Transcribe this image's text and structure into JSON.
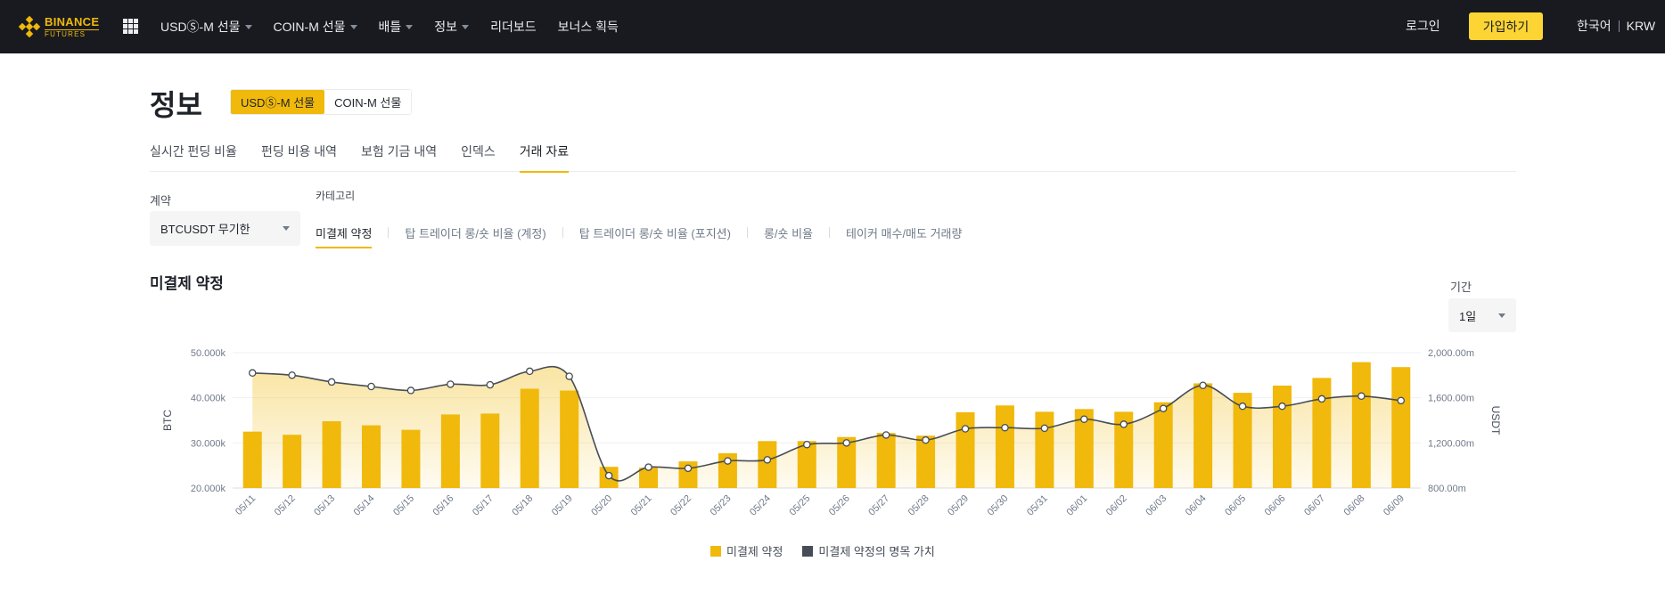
{
  "nav": {
    "logo_line1": "BINANCE",
    "logo_line2": "FUTURES",
    "items": [
      {
        "label": "USDⓈ-M 선물",
        "dropdown": true
      },
      {
        "label": "COIN-M 선물",
        "dropdown": true
      },
      {
        "label": "배틀",
        "dropdown": true
      },
      {
        "label": "정보",
        "dropdown": true
      },
      {
        "label": "리더보드",
        "dropdown": false
      },
      {
        "label": "보너스 획득",
        "dropdown": false
      }
    ],
    "login": "로그인",
    "signup": "가입하기",
    "language": "한국어",
    "currency": "KRW"
  },
  "header": {
    "title": "정보",
    "segments": [
      {
        "label": "USDⓈ-M 선물",
        "active": true
      },
      {
        "label": "COIN-M 선물",
        "active": false
      }
    ]
  },
  "tabs": [
    {
      "label": "실시간 펀딩 비율",
      "active": false
    },
    {
      "label": "펀딩 비용 내역",
      "active": false
    },
    {
      "label": "보험 기금 내역",
      "active": false
    },
    {
      "label": "인덱스",
      "active": false
    },
    {
      "label": "거래 자료",
      "active": true
    }
  ],
  "filters": {
    "contract_label": "계약",
    "contract_value": "BTCUSDT 무기한",
    "category_label": "카테고리",
    "categories": [
      {
        "label": "미결제 약정",
        "active": true
      },
      {
        "label": "탑 트레이더 롱/숏 비율 (계정)",
        "active": false
      },
      {
        "label": "탑 트레이더 롱/숏 비율 (포지션)",
        "active": false
      },
      {
        "label": "롱/숏 비율",
        "active": false
      },
      {
        "label": "테이커 매수/매도 거래량",
        "active": false
      }
    ],
    "period_label": "기간",
    "period_value": "1일"
  },
  "section_title": "미결제 약정",
  "colors": {
    "accent": "#f0b90b",
    "line": "#474d57",
    "nav_bg": "#181a20"
  },
  "chart_data": {
    "type": "bar",
    "categories": [
      "05/11",
      "05/12",
      "05/13",
      "05/14",
      "05/15",
      "05/16",
      "05/17",
      "05/18",
      "05/19",
      "05/20",
      "05/21",
      "05/22",
      "05/23",
      "05/24",
      "05/25",
      "05/26",
      "05/27",
      "05/28",
      "05/29",
      "05/30",
      "05/31",
      "06/01",
      "06/02",
      "06/03",
      "06/04",
      "06/05",
      "06/06",
      "06/07",
      "06/08",
      "06/09"
    ],
    "series": [
      {
        "name": "미결제 약정",
        "type": "bar",
        "axis": "left",
        "values": [
          32.5,
          31.8,
          34.8,
          33.9,
          32.9,
          36.3,
          36.5,
          42.0,
          41.6,
          24.7,
          24.5,
          25.9,
          27.7,
          30.4,
          30.4,
          31.3,
          32.2,
          31.6,
          36.8,
          38.3,
          36.9,
          37.5,
          36.9,
          39.0,
          43.2,
          41.1,
          42.7,
          44.4,
          47.9,
          46.8
        ]
      },
      {
        "name": "미결제 약정의 명목 가치",
        "type": "line",
        "axis": "right",
        "values": [
          1820,
          1800,
          1740,
          1700,
          1665,
          1720,
          1715,
          1835,
          1790,
          910,
          985,
          975,
          1040,
          1050,
          1185,
          1200,
          1270,
          1225,
          1325,
          1335,
          1330,
          1410,
          1365,
          1505,
          1710,
          1525,
          1525,
          1590,
          1615,
          1575
        ]
      }
    ],
    "ylabel_left": "BTC",
    "ylabel_right": "USDT",
    "ylim_left": [
      20,
      50
    ],
    "ylim_right": [
      800,
      2000
    ],
    "yticks_left": [
      "20.000k",
      "30.000k",
      "40.000k",
      "50.000k"
    ],
    "yticks_right": [
      "800.00m",
      "1,200.00m",
      "1,600.00m",
      "2,000.00m"
    ],
    "grid": true,
    "legend_position": "bottom-center"
  }
}
